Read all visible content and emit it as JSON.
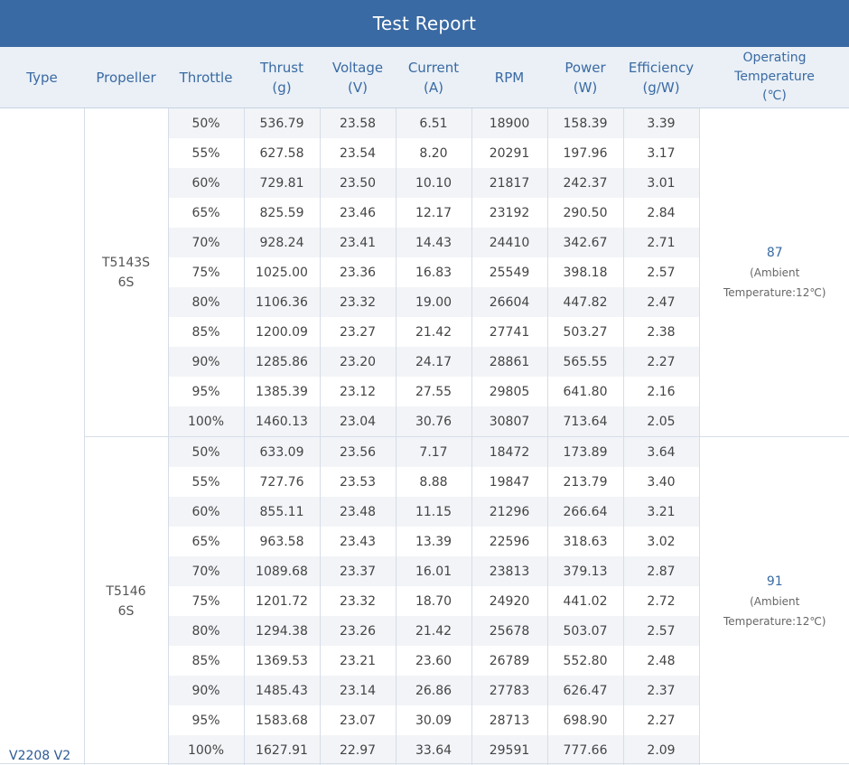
{
  "title": "Test Report",
  "headers": {
    "type": "Type",
    "propeller": "Propeller",
    "throttle": "Throttle",
    "thrust": [
      "Thrust",
      "(g)"
    ],
    "voltage": [
      "Voltage",
      "(V)"
    ],
    "current": [
      "Current",
      "(A)"
    ],
    "rpm": "RPM",
    "power": [
      "Power",
      "(W)"
    ],
    "efficiency": [
      "Efficiency",
      "(g/W)"
    ],
    "temperature": [
      "Operating",
      "Temperature",
      "(℃)"
    ]
  },
  "type": "V2208 V2",
  "groups": [
    {
      "propeller": [
        "T5143S",
        "6S"
      ],
      "temperature": "87",
      "ambient": [
        "(Ambient",
        "Temperature:12℃)"
      ],
      "rows": [
        [
          "50%",
          "536.79",
          "23.58",
          "6.51",
          "18900",
          "158.39",
          "3.39"
        ],
        [
          "55%",
          "627.58",
          "23.54",
          "8.20",
          "20291",
          "197.96",
          "3.17"
        ],
        [
          "60%",
          "729.81",
          "23.50",
          "10.10",
          "21817",
          "242.37",
          "3.01"
        ],
        [
          "65%",
          "825.59",
          "23.46",
          "12.17",
          "23192",
          "290.50",
          "2.84"
        ],
        [
          "70%",
          "928.24",
          "23.41",
          "14.43",
          "24410",
          "342.67",
          "2.71"
        ],
        [
          "75%",
          "1025.00",
          "23.36",
          "16.83",
          "25549",
          "398.18",
          "2.57"
        ],
        [
          "80%",
          "1106.36",
          "23.32",
          "19.00",
          "26604",
          "447.82",
          "2.47"
        ],
        [
          "85%",
          "1200.09",
          "23.27",
          "21.42",
          "27741",
          "503.27",
          "2.38"
        ],
        [
          "90%",
          "1285.86",
          "23.20",
          "24.17",
          "28861",
          "565.55",
          "2.27"
        ],
        [
          "95%",
          "1385.39",
          "23.12",
          "27.55",
          "29805",
          "641.80",
          "2.16"
        ],
        [
          "100%",
          "1460.13",
          "23.04",
          "30.76",
          "30807",
          "713.64",
          "2.05"
        ]
      ]
    },
    {
      "propeller": [
        "T5146",
        "6S"
      ],
      "temperature": "91",
      "ambient": [
        "(Ambient",
        "Temperature:12℃)"
      ],
      "rows": [
        [
          "50%",
          "633.09",
          "23.56",
          "7.17",
          "18472",
          "173.89",
          "3.64"
        ],
        [
          "55%",
          "727.76",
          "23.53",
          "8.88",
          "19847",
          "213.79",
          "3.40"
        ],
        [
          "60%",
          "855.11",
          "23.48",
          "11.15",
          "21296",
          "266.64",
          "3.21"
        ],
        [
          "65%",
          "963.58",
          "23.43",
          "13.39",
          "22596",
          "318.63",
          "3.02"
        ],
        [
          "70%",
          "1089.68",
          "23.37",
          "16.01",
          "23813",
          "379.13",
          "2.87"
        ],
        [
          "75%",
          "1201.72",
          "23.32",
          "18.70",
          "24920",
          "441.02",
          "2.72"
        ],
        [
          "80%",
          "1294.38",
          "23.26",
          "21.42",
          "25678",
          "503.07",
          "2.57"
        ],
        [
          "85%",
          "1369.53",
          "23.21",
          "23.60",
          "26789",
          "552.80",
          "2.48"
        ],
        [
          "90%",
          "1485.43",
          "23.14",
          "26.86",
          "27783",
          "626.47",
          "2.37"
        ],
        [
          "95%",
          "1583.68",
          "23.07",
          "30.09",
          "28713",
          "698.90",
          "2.27"
        ],
        [
          "100%",
          "1627.91",
          "22.97",
          "33.64",
          "29591",
          "777.66",
          "2.09"
        ]
      ]
    }
  ]
}
